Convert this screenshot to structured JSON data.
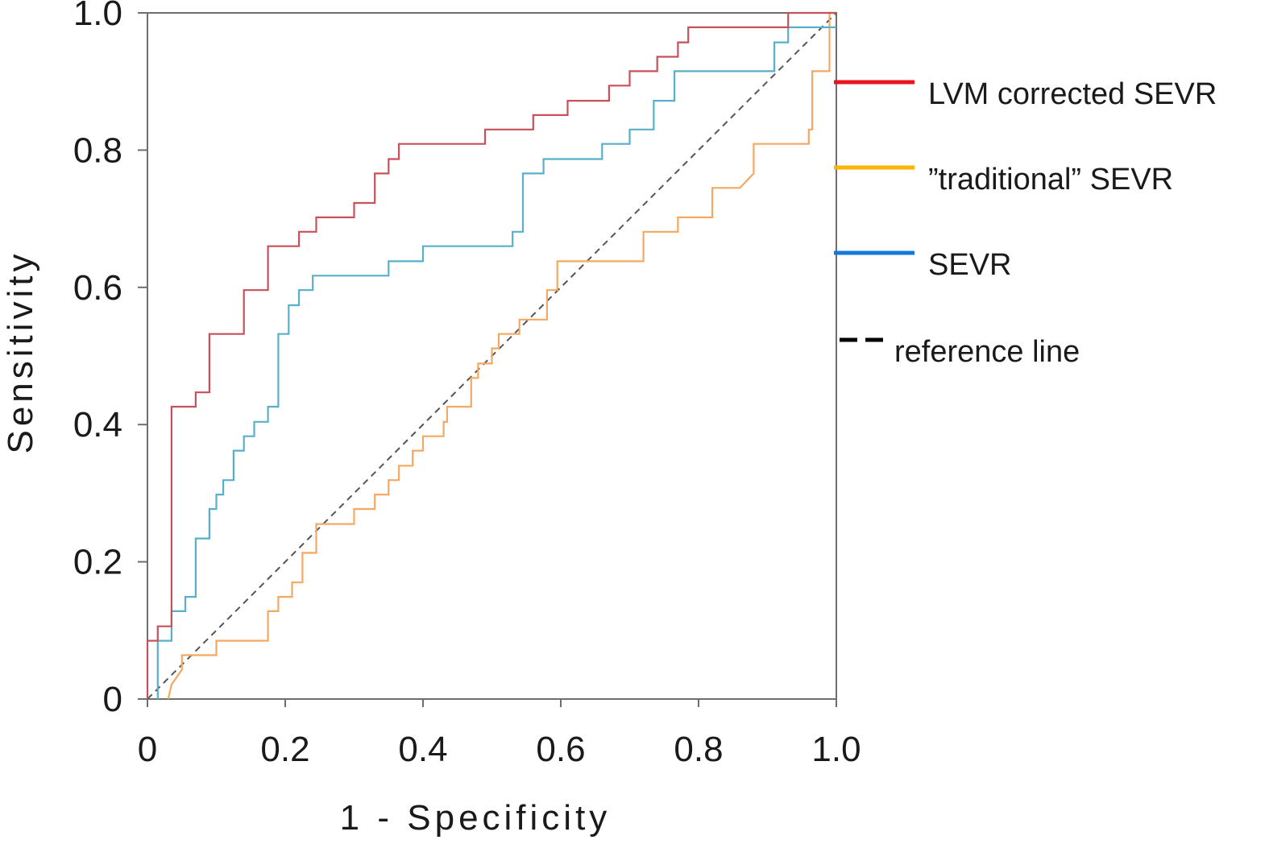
{
  "chart_data": {
    "type": "line",
    "title": "",
    "xlabel": "1 - Specificity",
    "ylabel": "Sensitivity",
    "xlim": [
      0,
      1
    ],
    "ylim": [
      0,
      1
    ],
    "grid": false,
    "legend_position": "right",
    "x_ticks": [
      {
        "value": 0,
        "label": "0"
      },
      {
        "value": 0.2,
        "label": "0.2"
      },
      {
        "value": 0.4,
        "label": "0.4"
      },
      {
        "value": 0.6,
        "label": "0.6"
      },
      {
        "value": 0.8,
        "label": "0.8"
      },
      {
        "value": 1.0,
        "label": "1.0"
      }
    ],
    "y_ticks": [
      {
        "value": 0,
        "label": "0"
      },
      {
        "value": 0.2,
        "label": "0.2"
      },
      {
        "value": 0.4,
        "label": "0.4"
      },
      {
        "value": 0.6,
        "label": "0.6"
      },
      {
        "value": 0.8,
        "label": "0.8"
      },
      {
        "value": 1.0,
        "label": "1.0"
      }
    ],
    "series": [
      {
        "name": "LVM corrected SEVR",
        "color": "#c8505a",
        "legend_color": "#e8141e",
        "dash": false,
        "points": [
          [
            0,
            0
          ],
          [
            0,
            0.085
          ],
          [
            0.015,
            0.085
          ],
          [
            0.015,
            0.106
          ],
          [
            0.035,
            0.106
          ],
          [
            0.035,
            0.426
          ],
          [
            0.07,
            0.426
          ],
          [
            0.07,
            0.447
          ],
          [
            0.09,
            0.447
          ],
          [
            0.09,
            0.532
          ],
          [
            0.14,
            0.532
          ],
          [
            0.14,
            0.596
          ],
          [
            0.175,
            0.596
          ],
          [
            0.175,
            0.66
          ],
          [
            0.22,
            0.66
          ],
          [
            0.22,
            0.681
          ],
          [
            0.245,
            0.681
          ],
          [
            0.245,
            0.702
          ],
          [
            0.3,
            0.702
          ],
          [
            0.3,
            0.723
          ],
          [
            0.33,
            0.723
          ],
          [
            0.33,
            0.766
          ],
          [
            0.35,
            0.766
          ],
          [
            0.35,
            0.787
          ],
          [
            0.365,
            0.787
          ],
          [
            0.365,
            0.809
          ],
          [
            0.49,
            0.809
          ],
          [
            0.49,
            0.83
          ],
          [
            0.56,
            0.83
          ],
          [
            0.56,
            0.851
          ],
          [
            0.61,
            0.851
          ],
          [
            0.61,
            0.872
          ],
          [
            0.67,
            0.872
          ],
          [
            0.67,
            0.894
          ],
          [
            0.7,
            0.894
          ],
          [
            0.7,
            0.915
          ],
          [
            0.74,
            0.915
          ],
          [
            0.74,
            0.936
          ],
          [
            0.77,
            0.936
          ],
          [
            0.77,
            0.957
          ],
          [
            0.785,
            0.957
          ],
          [
            0.785,
            0.979
          ],
          [
            0.93,
            0.979
          ],
          [
            0.93,
            1.0
          ],
          [
            1.0,
            1.0
          ]
        ]
      },
      {
        "name": "”traditional” SEVR",
        "color": "#f4a860",
        "legend_color": "#ffb400",
        "dash": false,
        "points": [
          [
            0.03,
            0
          ],
          [
            0.035,
            0.021
          ],
          [
            0.05,
            0.043
          ],
          [
            0.05,
            0.064
          ],
          [
            0.1,
            0.064
          ],
          [
            0.1,
            0.085
          ],
          [
            0.175,
            0.085
          ],
          [
            0.175,
            0.128
          ],
          [
            0.19,
            0.128
          ],
          [
            0.19,
            0.149
          ],
          [
            0.21,
            0.149
          ],
          [
            0.21,
            0.17
          ],
          [
            0.225,
            0.17
          ],
          [
            0.225,
            0.213
          ],
          [
            0.245,
            0.213
          ],
          [
            0.245,
            0.255
          ],
          [
            0.3,
            0.255
          ],
          [
            0.3,
            0.277
          ],
          [
            0.33,
            0.277
          ],
          [
            0.33,
            0.298
          ],
          [
            0.35,
            0.298
          ],
          [
            0.35,
            0.319
          ],
          [
            0.365,
            0.319
          ],
          [
            0.365,
            0.34
          ],
          [
            0.385,
            0.34
          ],
          [
            0.385,
            0.362
          ],
          [
            0.4,
            0.362
          ],
          [
            0.4,
            0.383
          ],
          [
            0.43,
            0.383
          ],
          [
            0.43,
            0.404
          ],
          [
            0.435,
            0.404
          ],
          [
            0.435,
            0.426
          ],
          [
            0.47,
            0.426
          ],
          [
            0.47,
            0.468
          ],
          [
            0.48,
            0.468
          ],
          [
            0.48,
            0.489
          ],
          [
            0.5,
            0.489
          ],
          [
            0.5,
            0.511
          ],
          [
            0.51,
            0.511
          ],
          [
            0.51,
            0.532
          ],
          [
            0.54,
            0.532
          ],
          [
            0.54,
            0.553
          ],
          [
            0.58,
            0.553
          ],
          [
            0.58,
            0.596
          ],
          [
            0.595,
            0.596
          ],
          [
            0.595,
            0.638
          ],
          [
            0.72,
            0.638
          ],
          [
            0.72,
            0.66
          ],
          [
            0.72,
            0.681
          ],
          [
            0.77,
            0.681
          ],
          [
            0.77,
            0.702
          ],
          [
            0.82,
            0.702
          ],
          [
            0.82,
            0.745
          ],
          [
            0.86,
            0.745
          ],
          [
            0.88,
            0.766
          ],
          [
            0.88,
            0.809
          ],
          [
            0.96,
            0.809
          ],
          [
            0.96,
            0.83
          ],
          [
            0.965,
            0.83
          ],
          [
            0.965,
            0.915
          ],
          [
            0.99,
            0.915
          ],
          [
            0.99,
            1.0
          ],
          [
            1.0,
            1.0
          ]
        ]
      },
      {
        "name": "SEVR",
        "color": "#58b0c8",
        "legend_color": "#1478dc",
        "dash": false,
        "points": [
          [
            0.015,
            0
          ],
          [
            0.015,
            0.085
          ],
          [
            0.035,
            0.085
          ],
          [
            0.035,
            0.128
          ],
          [
            0.055,
            0.128
          ],
          [
            0.055,
            0.149
          ],
          [
            0.07,
            0.149
          ],
          [
            0.07,
            0.234
          ],
          [
            0.09,
            0.234
          ],
          [
            0.09,
            0.277
          ],
          [
            0.1,
            0.277
          ],
          [
            0.1,
            0.298
          ],
          [
            0.11,
            0.298
          ],
          [
            0.11,
            0.319
          ],
          [
            0.125,
            0.319
          ],
          [
            0.125,
            0.362
          ],
          [
            0.14,
            0.362
          ],
          [
            0.14,
            0.383
          ],
          [
            0.155,
            0.383
          ],
          [
            0.155,
            0.404
          ],
          [
            0.175,
            0.404
          ],
          [
            0.175,
            0.426
          ],
          [
            0.19,
            0.426
          ],
          [
            0.19,
            0.532
          ],
          [
            0.205,
            0.532
          ],
          [
            0.205,
            0.574
          ],
          [
            0.22,
            0.574
          ],
          [
            0.22,
            0.596
          ],
          [
            0.24,
            0.596
          ],
          [
            0.24,
            0.617
          ],
          [
            0.35,
            0.617
          ],
          [
            0.35,
            0.638
          ],
          [
            0.4,
            0.638
          ],
          [
            0.4,
            0.66
          ],
          [
            0.53,
            0.66
          ],
          [
            0.53,
            0.681
          ],
          [
            0.545,
            0.681
          ],
          [
            0.545,
            0.766
          ],
          [
            0.575,
            0.766
          ],
          [
            0.575,
            0.787
          ],
          [
            0.66,
            0.787
          ],
          [
            0.66,
            0.809
          ],
          [
            0.7,
            0.809
          ],
          [
            0.7,
            0.83
          ],
          [
            0.735,
            0.83
          ],
          [
            0.735,
            0.872
          ],
          [
            0.765,
            0.872
          ],
          [
            0.765,
            0.915
          ],
          [
            0.91,
            0.915
          ],
          [
            0.91,
            0.957
          ],
          [
            0.93,
            0.957
          ],
          [
            0.93,
            0.979
          ],
          [
            1.0,
            0.979
          ]
        ]
      },
      {
        "name": "reference line",
        "color": "#555555",
        "legend_color": "#000000",
        "dash": true,
        "points": [
          [
            0,
            0
          ],
          [
            1,
            1
          ]
        ]
      }
    ]
  }
}
